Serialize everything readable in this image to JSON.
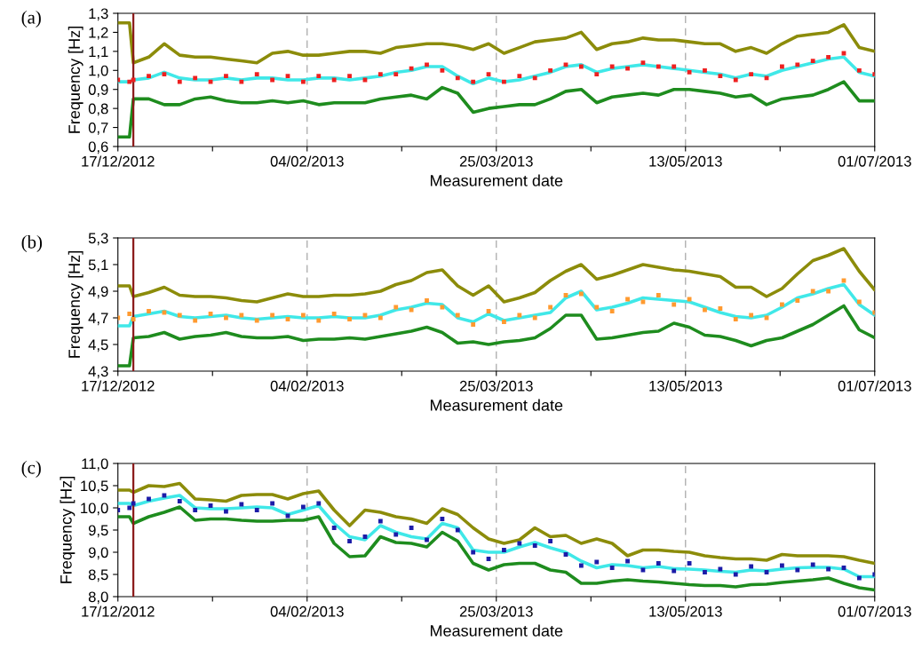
{
  "chart_data": [
    {
      "type": "line",
      "title": "(a)",
      "xlabel": "Measurement date",
      "ylabel": "Frequency [Hz]",
      "grid": "x",
      "x": [
        "2012-12-17",
        "2012-12-20",
        "2012-12-21",
        "2012-12-25",
        "2012-12-29",
        "2013-01-02",
        "2013-01-06",
        "2013-01-10",
        "2013-01-14",
        "2013-01-18",
        "2013-01-22",
        "2013-01-26",
        "2013-01-30",
        "2013-02-03",
        "2013-02-07",
        "2013-02-11",
        "2013-02-15",
        "2013-02-19",
        "2013-02-23",
        "2013-02-27",
        "2013-03-03",
        "2013-03-07",
        "2013-03-11",
        "2013-03-15",
        "2013-03-19",
        "2013-03-23",
        "2013-03-27",
        "2013-03-31",
        "2013-04-04",
        "2013-04-08",
        "2013-04-12",
        "2013-04-16",
        "2013-04-20",
        "2013-04-24",
        "2013-04-28",
        "2013-05-02",
        "2013-05-06",
        "2013-05-10",
        "2013-05-14",
        "2013-05-18",
        "2013-05-22",
        "2013-05-26",
        "2013-05-30",
        "2013-06-03",
        "2013-06-07",
        "2013-06-11",
        "2013-06-15",
        "2013-06-19",
        "2013-06-23",
        "2013-06-27",
        "2013-07-01"
      ],
      "xlim": [
        "2012-12-17",
        "2013-07-01"
      ],
      "xticks": [
        {
          "value": "2012-12-17",
          "label": "17/12/2012"
        },
        {
          "value": "2013-01-10T12:00",
          "label": null
        },
        {
          "value": "2013-02-04",
          "label": "04/02/2013"
        },
        {
          "value": "2013-02-28T12:00",
          "label": null
        },
        {
          "value": "2013-03-25",
          "label": "25/03/2013"
        },
        {
          "value": "2013-04-18T12:00",
          "label": null
        },
        {
          "value": "2013-05-13",
          "label": "13/05/2013"
        },
        {
          "value": "2013-06-06T12:00",
          "label": null
        },
        {
          "value": "2013-07-01",
          "label": "01/07/2013"
        }
      ],
      "ylim": [
        0.6,
        1.3
      ],
      "yticks": [
        {
          "value": 0.6,
          "label": "0,6"
        },
        {
          "value": 0.7,
          "label": "0,7"
        },
        {
          "value": 0.8,
          "label": "0,8"
        },
        {
          "value": 0.9,
          "label": "0,9"
        },
        {
          "value": 1.0,
          "label": "1,0"
        },
        {
          "value": 1.1,
          "label": "1,1"
        },
        {
          "value": 1.2,
          "label": "1,2"
        },
        {
          "value": 1.3,
          "label": "1,3"
        }
      ],
      "ref_lines": [
        {
          "axis": "x",
          "value": "2012-12-21",
          "color": "#8b1a1a"
        }
      ],
      "series": [
        {
          "type": "line",
          "color": "#8c8c0a",
          "values": [
            1.25,
            1.25,
            1.04,
            1.07,
            1.14,
            1.08,
            1.07,
            1.07,
            1.06,
            1.05,
            1.04,
            1.09,
            1.1,
            1.08,
            1.08,
            1.09,
            1.1,
            1.1,
            1.09,
            1.12,
            1.13,
            1.14,
            1.14,
            1.13,
            1.11,
            1.14,
            1.09,
            1.12,
            1.15,
            1.16,
            1.17,
            1.2,
            1.11,
            1.14,
            1.15,
            1.17,
            1.16,
            1.16,
            1.15,
            1.14,
            1.14,
            1.1,
            1.12,
            1.09,
            1.14,
            1.18,
            1.19,
            1.2,
            1.24,
            1.12,
            1.1
          ]
        },
        {
          "type": "line",
          "color": "#1e8c1e",
          "values": [
            0.65,
            0.65,
            0.85,
            0.85,
            0.82,
            0.82,
            0.85,
            0.86,
            0.84,
            0.83,
            0.83,
            0.84,
            0.83,
            0.84,
            0.82,
            0.83,
            0.83,
            0.83,
            0.85,
            0.86,
            0.87,
            0.85,
            0.91,
            0.88,
            0.78,
            0.8,
            0.81,
            0.82,
            0.82,
            0.85,
            0.89,
            0.9,
            0.83,
            0.86,
            0.87,
            0.88,
            0.87,
            0.9,
            0.9,
            0.89,
            0.88,
            0.86,
            0.87,
            0.82,
            0.85,
            0.86,
            0.87,
            0.9,
            0.94,
            0.84,
            0.84
          ]
        },
        {
          "type": "scatter",
          "marker": "square",
          "color": "#ee2020",
          "values": [
            0.95,
            0.94,
            0.95,
            0.97,
            0.98,
            0.94,
            0.96,
            0.94,
            0.97,
            0.94,
            0.98,
            0.95,
            0.97,
            0.94,
            0.97,
            0.95,
            0.97,
            0.95,
            0.98,
            0.98,
            1.01,
            1.03,
            1.0,
            0.96,
            0.94,
            0.98,
            0.94,
            0.97,
            0.96,
            1.0,
            1.03,
            1.02,
            0.98,
            1.02,
            1.01,
            1.04,
            1.02,
            1.02,
            0.99,
            1.0,
            0.97,
            0.95,
            0.98,
            0.96,
            1.02,
            1.03,
            1.05,
            1.07,
            1.09,
            1.0,
            0.98
          ]
        },
        {
          "type": "line",
          "color": "#40e8e8",
          "values": [
            0.94,
            0.94,
            0.95,
            0.96,
            0.99,
            0.96,
            0.95,
            0.95,
            0.96,
            0.95,
            0.96,
            0.96,
            0.95,
            0.95,
            0.96,
            0.96,
            0.95,
            0.96,
            0.97,
            0.99,
            1.0,
            1.02,
            1.02,
            0.97,
            0.93,
            0.96,
            0.94,
            0.95,
            0.97,
            0.99,
            1.02,
            1.03,
            0.99,
            1.01,
            1.02,
            1.03,
            1.02,
            1.01,
            1.0,
            0.99,
            0.98,
            0.96,
            0.98,
            0.97,
            1.0,
            1.02,
            1.04,
            1.06,
            1.07,
            0.99,
            0.97
          ]
        }
      ]
    },
    {
      "type": "line",
      "title": "(b)",
      "xlabel": "Measurement date",
      "ylabel": "Frequency [Hz]",
      "grid": "x",
      "x": [
        "2012-12-17",
        "2012-12-20",
        "2012-12-21",
        "2012-12-25",
        "2012-12-29",
        "2013-01-02",
        "2013-01-06",
        "2013-01-10",
        "2013-01-14",
        "2013-01-18",
        "2013-01-22",
        "2013-01-26",
        "2013-01-30",
        "2013-02-03",
        "2013-02-07",
        "2013-02-11",
        "2013-02-15",
        "2013-02-19",
        "2013-02-23",
        "2013-02-27",
        "2013-03-03",
        "2013-03-07",
        "2013-03-11",
        "2013-03-15",
        "2013-03-19",
        "2013-03-23",
        "2013-03-27",
        "2013-03-31",
        "2013-04-04",
        "2013-04-08",
        "2013-04-12",
        "2013-04-16",
        "2013-04-20",
        "2013-04-24",
        "2013-04-28",
        "2013-05-02",
        "2013-05-06",
        "2013-05-10",
        "2013-05-14",
        "2013-05-18",
        "2013-05-22",
        "2013-05-26",
        "2013-05-30",
        "2013-06-03",
        "2013-06-07",
        "2013-06-11",
        "2013-06-15",
        "2013-06-19",
        "2013-06-23",
        "2013-06-27",
        "2013-07-01"
      ],
      "xlim": [
        "2012-12-17",
        "2013-07-01"
      ],
      "xticks": [
        {
          "value": "2012-12-17",
          "label": "17/12/2012"
        },
        {
          "value": "2013-01-10T12:00",
          "label": null
        },
        {
          "value": "2013-02-04",
          "label": "04/02/2013"
        },
        {
          "value": "2013-02-28T12:00",
          "label": null
        },
        {
          "value": "2013-03-25",
          "label": "25/03/2013"
        },
        {
          "value": "2013-04-18T12:00",
          "label": null
        },
        {
          "value": "2013-05-13",
          "label": "13/05/2013"
        },
        {
          "value": "2013-06-06T12:00",
          "label": null
        },
        {
          "value": "2013-07-01",
          "label": "01/07/2013"
        }
      ],
      "ylim": [
        4.3,
        5.3
      ],
      "yticks": [
        {
          "value": 4.3,
          "label": "4,3"
        },
        {
          "value": 4.5,
          "label": "4,5"
        },
        {
          "value": 4.7,
          "label": "4,7"
        },
        {
          "value": 4.9,
          "label": "4,9"
        },
        {
          "value": 5.1,
          "label": "5,1"
        },
        {
          "value": 5.3,
          "label": "5,3"
        }
      ],
      "ref_lines": [
        {
          "axis": "x",
          "value": "2012-12-21",
          "color": "#8b1a1a"
        }
      ],
      "series": [
        {
          "type": "line",
          "color": "#8c8c0a",
          "values": [
            4.94,
            4.94,
            4.86,
            4.89,
            4.93,
            4.87,
            4.86,
            4.86,
            4.85,
            4.83,
            4.82,
            4.85,
            4.88,
            4.86,
            4.86,
            4.87,
            4.87,
            4.88,
            4.9,
            4.95,
            4.98,
            5.04,
            5.06,
            4.94,
            4.87,
            4.94,
            4.82,
            4.85,
            4.89,
            4.98,
            5.05,
            5.1,
            4.99,
            5.02,
            5.06,
            5.1,
            5.08,
            5.06,
            5.05,
            5.03,
            5.01,
            4.93,
            4.93,
            4.86,
            4.92,
            5.03,
            5.13,
            5.17,
            5.22,
            5.05,
            4.91
          ]
        },
        {
          "type": "line",
          "color": "#1e8c1e",
          "values": [
            4.34,
            4.34,
            4.55,
            4.56,
            4.59,
            4.54,
            4.56,
            4.57,
            4.59,
            4.56,
            4.55,
            4.55,
            4.56,
            4.53,
            4.54,
            4.54,
            4.55,
            4.54,
            4.56,
            4.58,
            4.6,
            4.63,
            4.59,
            4.51,
            4.52,
            4.5,
            4.52,
            4.53,
            4.55,
            4.62,
            4.72,
            4.72,
            4.54,
            4.55,
            4.57,
            4.59,
            4.6,
            4.66,
            4.63,
            4.57,
            4.56,
            4.53,
            4.49,
            4.53,
            4.55,
            4.6,
            4.65,
            4.72,
            4.79,
            4.61,
            4.55
          ]
        },
        {
          "type": "scatter",
          "marker": "square",
          "color": "#ff9a30",
          "values": [
            4.7,
            4.73,
            4.69,
            4.75,
            4.74,
            4.72,
            4.68,
            4.73,
            4.7,
            4.72,
            4.68,
            4.72,
            4.69,
            4.72,
            4.68,
            4.73,
            4.69,
            4.72,
            4.7,
            4.78,
            4.76,
            4.83,
            4.78,
            4.72,
            4.65,
            4.75,
            4.67,
            4.72,
            4.7,
            4.78,
            4.87,
            4.88,
            4.78,
            4.75,
            4.84,
            4.82,
            4.87,
            4.8,
            4.84,
            4.76,
            4.77,
            4.69,
            4.72,
            4.7,
            4.8,
            4.83,
            4.9,
            4.9,
            4.98,
            4.82,
            4.74
          ]
        },
        {
          "type": "line",
          "color": "#40e8e8",
          "values": [
            4.64,
            4.64,
            4.71,
            4.73,
            4.75,
            4.71,
            4.7,
            4.71,
            4.72,
            4.7,
            4.69,
            4.7,
            4.71,
            4.7,
            4.7,
            4.71,
            4.7,
            4.7,
            4.72,
            4.76,
            4.78,
            4.81,
            4.8,
            4.7,
            4.67,
            4.73,
            4.68,
            4.7,
            4.72,
            4.74,
            4.85,
            4.9,
            4.76,
            4.78,
            4.81,
            4.85,
            4.84,
            4.83,
            4.82,
            4.78,
            4.74,
            4.71,
            4.7,
            4.72,
            4.78,
            4.85,
            4.88,
            4.92,
            4.95,
            4.8,
            4.72
          ]
        }
      ]
    },
    {
      "type": "line",
      "title": "(c)",
      "xlabel": "Measurement date",
      "ylabel": "Frequency [Hz]",
      "grid": "x",
      "x": [
        "2012-12-17",
        "2012-12-20",
        "2012-12-21",
        "2012-12-25",
        "2012-12-29",
        "2013-01-02",
        "2013-01-06",
        "2013-01-10",
        "2013-01-14",
        "2013-01-18",
        "2013-01-22",
        "2013-01-26",
        "2013-01-30",
        "2013-02-03",
        "2013-02-07",
        "2013-02-11",
        "2013-02-15",
        "2013-02-19",
        "2013-02-23",
        "2013-02-27",
        "2013-03-03",
        "2013-03-07",
        "2013-03-11",
        "2013-03-15",
        "2013-03-19",
        "2013-03-23",
        "2013-03-27",
        "2013-03-31",
        "2013-04-04",
        "2013-04-08",
        "2013-04-12",
        "2013-04-16",
        "2013-04-20",
        "2013-04-24",
        "2013-04-28",
        "2013-05-02",
        "2013-05-06",
        "2013-05-10",
        "2013-05-14",
        "2013-05-18",
        "2013-05-22",
        "2013-05-26",
        "2013-05-30",
        "2013-06-03",
        "2013-06-07",
        "2013-06-11",
        "2013-06-15",
        "2013-06-19",
        "2013-06-23",
        "2013-06-27",
        "2013-07-01"
      ],
      "xlim": [
        "2012-12-17",
        "2013-07-01"
      ],
      "xticks": [
        {
          "value": "2012-12-17",
          "label": "17/12/2012"
        },
        {
          "value": "2013-01-10T12:00",
          "label": null
        },
        {
          "value": "2013-02-04",
          "label": "04/02/2013"
        },
        {
          "value": "2013-02-28T12:00",
          "label": null
        },
        {
          "value": "2013-03-25",
          "label": "25/03/2013"
        },
        {
          "value": "2013-04-18T12:00",
          "label": null
        },
        {
          "value": "2013-05-13",
          "label": "13/05/2013"
        },
        {
          "value": "2013-06-06T12:00",
          "label": null
        },
        {
          "value": "2013-07-01",
          "label": "01/07/2013"
        }
      ],
      "ylim": [
        8.0,
        11.0
      ],
      "yticks": [
        {
          "value": 8.0,
          "label": "8,0"
        },
        {
          "value": 8.5,
          "label": "8,5"
        },
        {
          "value": 9.0,
          "label": "9,0"
        },
        {
          "value": 9.5,
          "label": "9,5"
        },
        {
          "value": 10.0,
          "label": "10,0"
        },
        {
          "value": 10.5,
          "label": "10,5"
        },
        {
          "value": 11.0,
          "label": "11,0"
        }
      ],
      "ref_lines": [
        {
          "axis": "x",
          "value": "2012-12-21",
          "color": "#8b1a1a"
        }
      ],
      "series": [
        {
          "type": "line",
          "color": "#8c8c0a",
          "values": [
            10.4,
            10.4,
            10.35,
            10.5,
            10.48,
            10.55,
            10.2,
            10.18,
            10.15,
            10.28,
            10.3,
            10.3,
            10.2,
            10.32,
            10.38,
            9.95,
            9.6,
            9.95,
            9.9,
            9.8,
            9.75,
            9.65,
            9.98,
            9.85,
            9.55,
            9.3,
            9.2,
            9.28,
            9.55,
            9.35,
            9.38,
            9.2,
            9.3,
            9.2,
            8.92,
            9.05,
            9.05,
            9.02,
            9.0,
            8.92,
            8.88,
            8.85,
            8.85,
            8.82,
            8.95,
            8.92,
            8.92,
            8.92,
            8.9,
            8.82,
            8.75
          ]
        },
        {
          "type": "line",
          "color": "#1e8c1e",
          "values": [
            9.8,
            9.8,
            9.65,
            9.8,
            9.9,
            10.02,
            9.72,
            9.75,
            9.75,
            9.72,
            9.7,
            9.7,
            9.72,
            9.72,
            9.8,
            9.2,
            8.9,
            8.92,
            9.35,
            9.22,
            9.2,
            9.12,
            9.45,
            9.25,
            8.75,
            8.6,
            8.72,
            8.75,
            8.75,
            8.6,
            8.55,
            8.3,
            8.3,
            8.35,
            8.38,
            8.35,
            8.33,
            8.3,
            8.27,
            8.25,
            8.25,
            8.22,
            8.27,
            8.28,
            8.32,
            8.35,
            8.38,
            8.42,
            8.3,
            8.2,
            8.15
          ]
        },
        {
          "type": "scatter",
          "marker": "square",
          "color": "#1c1ca8",
          "values": [
            9.95,
            10.0,
            10.1,
            10.2,
            10.28,
            10.15,
            9.95,
            10.05,
            9.92,
            10.08,
            9.95,
            10.1,
            9.82,
            10.02,
            10.1,
            9.55,
            9.25,
            9.35,
            9.7,
            9.4,
            9.55,
            9.28,
            9.75,
            9.5,
            9.0,
            8.85,
            9.05,
            9.2,
            9.15,
            9.25,
            8.95,
            8.7,
            8.78,
            8.65,
            8.8,
            8.6,
            8.75,
            8.58,
            8.75,
            8.55,
            8.62,
            8.5,
            8.68,
            8.55,
            8.7,
            8.6,
            8.72,
            8.62,
            8.65,
            8.42,
            8.5
          ]
        },
        {
          "type": "line",
          "color": "#40e8e8",
          "values": [
            10.1,
            10.1,
            10.05,
            10.15,
            10.22,
            10.28,
            10.0,
            9.98,
            9.98,
            10.0,
            10.02,
            10.0,
            9.85,
            9.95,
            10.05,
            9.65,
            9.35,
            9.28,
            9.6,
            9.45,
            9.35,
            9.3,
            9.65,
            9.55,
            9.05,
            9.0,
            9.0,
            9.12,
            9.22,
            9.1,
            9.0,
            8.8,
            8.65,
            8.72,
            8.7,
            8.65,
            8.68,
            8.63,
            8.62,
            8.6,
            8.57,
            8.55,
            8.6,
            8.58,
            8.62,
            8.65,
            8.66,
            8.66,
            8.62,
            8.45,
            8.45
          ]
        }
      ]
    }
  ]
}
